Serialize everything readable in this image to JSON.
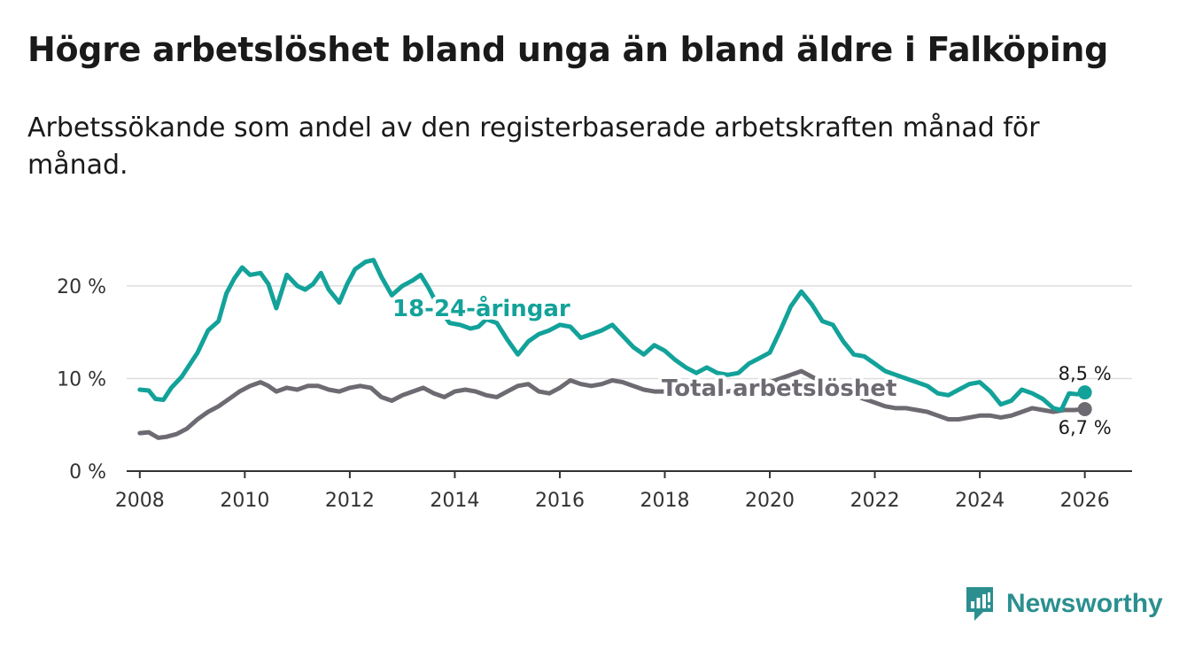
{
  "title": "Högre arbetslöshet bland unga än bland äldre i Falköping",
  "subtitle": "Arbetssökande som andel av den registerbaserade arbetskraften månad för månad.",
  "brand": "Newsworthy",
  "colors": {
    "youth": "#13a29a",
    "total": "#6e6a72",
    "grid": "#dddddd",
    "axis": "#333333",
    "brand": "#2b8f8f"
  },
  "chart_data": {
    "type": "line",
    "title": "Högre arbetslöshet bland unga än bland äldre i Falköping",
    "xlabel": "",
    "ylabel": "",
    "xlim": [
      2007.75,
      2026.9
    ],
    "ylim": [
      0,
      22
    ],
    "x_ticks": [
      2008,
      2010,
      2012,
      2014,
      2016,
      2018,
      2020,
      2022,
      2024,
      2026
    ],
    "x_tick_labels": [
      "2008",
      "2010",
      "2012",
      "2014",
      "2016",
      "2018",
      "2020",
      "2022",
      "2024",
      "2026"
    ],
    "y_ticks": [
      0,
      10,
      20
    ],
    "y_tick_labels": [
      "0 %",
      "10 %",
      "20 %"
    ],
    "grid": true,
    "series": [
      {
        "name": "18-24-åringar",
        "label": "18-24-åringar",
        "end_label": "8,5 %",
        "color": "#13a29a",
        "points": [
          [
            2008.0,
            8.8
          ],
          [
            2008.17,
            8.7
          ],
          [
            2008.3,
            7.8
          ],
          [
            2008.45,
            7.7
          ],
          [
            2008.6,
            9.0
          ],
          [
            2008.8,
            10.2
          ],
          [
            2008.95,
            11.5
          ],
          [
            2009.1,
            12.8
          ],
          [
            2009.3,
            15.2
          ],
          [
            2009.5,
            16.2
          ],
          [
            2009.65,
            19.2
          ],
          [
            2009.8,
            20.8
          ],
          [
            2009.95,
            22.0
          ],
          [
            2010.1,
            21.2
          ],
          [
            2010.3,
            21.4
          ],
          [
            2010.45,
            20.2
          ],
          [
            2010.6,
            17.6
          ],
          [
            2010.8,
            21.2
          ],
          [
            2011.0,
            20.0
          ],
          [
            2011.15,
            19.6
          ],
          [
            2011.3,
            20.2
          ],
          [
            2011.45,
            21.4
          ],
          [
            2011.6,
            19.6
          ],
          [
            2011.8,
            18.2
          ],
          [
            2011.95,
            20.2
          ],
          [
            2012.1,
            21.8
          ],
          [
            2012.3,
            22.6
          ],
          [
            2012.45,
            22.8
          ],
          [
            2012.6,
            21.0
          ],
          [
            2012.8,
            19.0
          ],
          [
            2013.0,
            20.0
          ],
          [
            2013.2,
            20.6
          ],
          [
            2013.35,
            21.2
          ],
          [
            2013.5,
            19.8
          ],
          [
            2013.7,
            17.6
          ],
          [
            2013.9,
            16.0
          ],
          [
            2014.1,
            15.8
          ],
          [
            2014.3,
            15.4
          ],
          [
            2014.45,
            15.6
          ],
          [
            2014.6,
            16.4
          ],
          [
            2014.8,
            16.0
          ],
          [
            2015.0,
            14.2
          ],
          [
            2015.2,
            12.6
          ],
          [
            2015.4,
            14.0
          ],
          [
            2015.6,
            14.8
          ],
          [
            2015.8,
            15.2
          ],
          [
            2016.0,
            15.8
          ],
          [
            2016.2,
            15.6
          ],
          [
            2016.4,
            14.4
          ],
          [
            2016.6,
            14.8
          ],
          [
            2016.8,
            15.2
          ],
          [
            2017.0,
            15.8
          ],
          [
            2017.2,
            14.6
          ],
          [
            2017.4,
            13.4
          ],
          [
            2017.6,
            12.6
          ],
          [
            2017.8,
            13.6
          ],
          [
            2018.0,
            13.0
          ],
          [
            2018.2,
            12.0
          ],
          [
            2018.4,
            11.2
          ],
          [
            2018.6,
            10.6
          ],
          [
            2018.8,
            11.2
          ],
          [
            2019.0,
            10.6
          ],
          [
            2019.2,
            10.4
          ],
          [
            2019.4,
            10.6
          ],
          [
            2019.6,
            11.6
          ],
          [
            2019.8,
            12.2
          ],
          [
            2020.0,
            12.8
          ],
          [
            2020.2,
            15.2
          ],
          [
            2020.4,
            17.8
          ],
          [
            2020.6,
            19.4
          ],
          [
            2020.8,
            18.0
          ],
          [
            2021.0,
            16.2
          ],
          [
            2021.2,
            15.8
          ],
          [
            2021.4,
            14.0
          ],
          [
            2021.6,
            12.6
          ],
          [
            2021.8,
            12.4
          ],
          [
            2022.0,
            11.6
          ],
          [
            2022.2,
            10.8
          ],
          [
            2022.4,
            10.4
          ],
          [
            2022.6,
            10.0
          ],
          [
            2022.8,
            9.6
          ],
          [
            2023.0,
            9.2
          ],
          [
            2023.2,
            8.4
          ],
          [
            2023.4,
            8.2
          ],
          [
            2023.6,
            8.8
          ],
          [
            2023.8,
            9.4
          ],
          [
            2024.0,
            9.6
          ],
          [
            2024.2,
            8.6
          ],
          [
            2024.4,
            7.2
          ],
          [
            2024.6,
            7.6
          ],
          [
            2024.8,
            8.8
          ],
          [
            2025.0,
            8.4
          ],
          [
            2025.2,
            7.8
          ],
          [
            2025.4,
            6.8
          ],
          [
            2025.55,
            6.6
          ],
          [
            2025.7,
            8.4
          ],
          [
            2025.85,
            8.3
          ],
          [
            2026.0,
            8.5
          ]
        ]
      },
      {
        "name": "Total arbetslöshet",
        "label": "Total arbetslöshet",
        "end_label": "6,7 %",
        "color": "#6e6a72",
        "points": [
          [
            2008.0,
            4.1
          ],
          [
            2008.17,
            4.2
          ],
          [
            2008.35,
            3.6
          ],
          [
            2008.5,
            3.7
          ],
          [
            2008.7,
            4.0
          ],
          [
            2008.9,
            4.6
          ],
          [
            2009.1,
            5.6
          ],
          [
            2009.3,
            6.4
          ],
          [
            2009.5,
            7.0
          ],
          [
            2009.7,
            7.8
          ],
          [
            2009.9,
            8.6
          ],
          [
            2010.1,
            9.2
          ],
          [
            2010.3,
            9.6
          ],
          [
            2010.45,
            9.2
          ],
          [
            2010.6,
            8.6
          ],
          [
            2010.8,
            9.0
          ],
          [
            2011.0,
            8.8
          ],
          [
            2011.2,
            9.2
          ],
          [
            2011.4,
            9.2
          ],
          [
            2011.6,
            8.8
          ],
          [
            2011.8,
            8.6
          ],
          [
            2012.0,
            9.0
          ],
          [
            2012.2,
            9.2
          ],
          [
            2012.4,
            9.0
          ],
          [
            2012.6,
            8.0
          ],
          [
            2012.8,
            7.6
          ],
          [
            2013.0,
            8.2
          ],
          [
            2013.2,
            8.6
          ],
          [
            2013.4,
            9.0
          ],
          [
            2013.6,
            8.4
          ],
          [
            2013.8,
            8.0
          ],
          [
            2014.0,
            8.6
          ],
          [
            2014.2,
            8.8
          ],
          [
            2014.4,
            8.6
          ],
          [
            2014.6,
            8.2
          ],
          [
            2014.8,
            8.0
          ],
          [
            2015.0,
            8.6
          ],
          [
            2015.2,
            9.2
          ],
          [
            2015.4,
            9.4
          ],
          [
            2015.6,
            8.6
          ],
          [
            2015.8,
            8.4
          ],
          [
            2016.0,
            9.0
          ],
          [
            2016.2,
            9.8
          ],
          [
            2016.4,
            9.4
          ],
          [
            2016.6,
            9.2
          ],
          [
            2016.8,
            9.4
          ],
          [
            2017.0,
            9.8
          ],
          [
            2017.2,
            9.6
          ],
          [
            2017.4,
            9.2
          ],
          [
            2017.6,
            8.8
          ],
          [
            2017.8,
            8.6
          ],
          [
            2018.0,
            8.6
          ],
          [
            2018.2,
            8.4
          ],
          [
            2018.4,
            8.4
          ],
          [
            2018.6,
            8.2
          ],
          [
            2018.8,
            8.4
          ],
          [
            2019.0,
            8.4
          ],
          [
            2019.2,
            8.6
          ],
          [
            2019.4,
            8.8
          ],
          [
            2019.6,
            9.0
          ],
          [
            2019.8,
            9.2
          ],
          [
            2020.0,
            9.6
          ],
          [
            2020.2,
            10.0
          ],
          [
            2020.4,
            10.4
          ],
          [
            2020.6,
            10.8
          ],
          [
            2020.8,
            10.2
          ],
          [
            2021.0,
            9.6
          ],
          [
            2021.2,
            9.2
          ],
          [
            2021.4,
            8.8
          ],
          [
            2021.6,
            8.2
          ],
          [
            2021.8,
            7.8
          ],
          [
            2022.0,
            7.4
          ],
          [
            2022.2,
            7.0
          ],
          [
            2022.4,
            6.8
          ],
          [
            2022.6,
            6.8
          ],
          [
            2022.8,
            6.6
          ],
          [
            2023.0,
            6.4
          ],
          [
            2023.2,
            6.0
          ],
          [
            2023.4,
            5.6
          ],
          [
            2023.6,
            5.6
          ],
          [
            2023.8,
            5.8
          ],
          [
            2024.0,
            6.0
          ],
          [
            2024.2,
            6.0
          ],
          [
            2024.4,
            5.8
          ],
          [
            2024.6,
            6.0
          ],
          [
            2024.8,
            6.4
          ],
          [
            2025.0,
            6.8
          ],
          [
            2025.2,
            6.6
          ],
          [
            2025.4,
            6.4
          ],
          [
            2025.6,
            6.6
          ],
          [
            2025.8,
            6.6
          ],
          [
            2026.0,
            6.7
          ]
        ]
      }
    ]
  }
}
